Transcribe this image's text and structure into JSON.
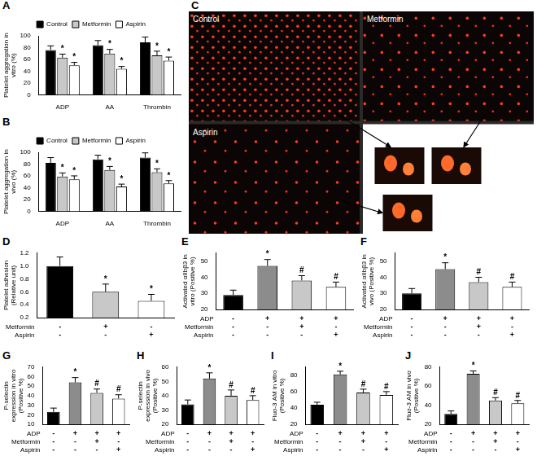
{
  "chart_data": [
    {
      "panel": "A",
      "type": "bar",
      "y_label": "Platelet aggregation in vitro (%)",
      "categories": [
        "ADP",
        "AA",
        "Thrombin"
      ],
      "series": [
        {
          "name": "Control",
          "color": "#000000",
          "values": [
            76,
            84,
            89
          ],
          "errors": [
            7,
            8,
            9
          ]
        },
        {
          "name": "Metformin",
          "color": "#c8c8c8",
          "values": [
            63,
            70,
            67
          ],
          "errors": [
            6,
            7,
            7
          ],
          "significance": [
            "*",
            "*",
            "*"
          ]
        },
        {
          "name": "Aspirin",
          "color": "#ffffff",
          "values": [
            50,
            44,
            58
          ],
          "errors": [
            5,
            4,
            6
          ],
          "significance": [
            "*",
            "*",
            "*"
          ]
        }
      ],
      "ylim": [
        0,
        100
      ],
      "yticks": [
        0,
        20,
        40,
        60,
        80,
        100
      ],
      "grid": false,
      "legend": "top"
    },
    {
      "panel": "B",
      "type": "bar",
      "y_label": "Platelet aggregation in vivo (%)",
      "categories": [
        "ADP",
        "AA",
        "Thrombin"
      ],
      "series": [
        {
          "name": "Control",
          "color": "#000000",
          "values": [
            82,
            88,
            91
          ],
          "errors": [
            9,
            7,
            8
          ]
        },
        {
          "name": "Metformin",
          "color": "#c8c8c8",
          "values": [
            59,
            70,
            66
          ],
          "errors": [
            6,
            6,
            6
          ],
          "significance": [
            "*",
            "*",
            "*"
          ]
        },
        {
          "name": "Aspirin",
          "color": "#ffffff",
          "values": [
            54,
            42,
            47
          ],
          "errors": [
            6,
            4,
            5
          ],
          "significance": [
            "*",
            "*",
            "*"
          ]
        }
      ],
      "ylim": [
        0,
        100
      ],
      "yticks": [
        0,
        20,
        40,
        60,
        80,
        100
      ],
      "grid": false,
      "legend": "top"
    },
    {
      "panel": "D",
      "type": "bar",
      "y_label": "Platelet adhesion (Relative unit)",
      "x_rows": [
        {
          "label": "Metformin",
          "marks": [
            "-",
            "+",
            "-"
          ]
        },
        {
          "label": "Aspirin",
          "marks": [
            "-",
            "-",
            "+"
          ]
        }
      ],
      "values": [
        1.0,
        0.6,
        0.46
      ],
      "errors": [
        0.14,
        0.12,
        0.1
      ],
      "significance": [
        null,
        "*",
        "*"
      ],
      "colors": [
        "#000000",
        "#c8c8c8",
        "#ffffff"
      ],
      "ylim": [
        0.2,
        1.2
      ],
      "yticks": [
        0.2,
        0.4,
        0.6,
        0.8,
        {
          "value": 1,
          "label": "1.0"
        },
        1.2
      ],
      "grid": false
    },
    {
      "panel": "E",
      "type": "bar",
      "y_label": "Activated αIIbβ3 in vitro (Positive %)",
      "x_rows": [
        {
          "label": "ADP",
          "marks": [
            "-",
            "+",
            "+",
            "+"
          ]
        },
        {
          "label": "Metformin",
          "marks": [
            "-",
            "-",
            "+",
            "-"
          ]
        },
        {
          "label": "Aspirin",
          "marks": [
            "-",
            "-",
            "-",
            "+"
          ]
        }
      ],
      "values": [
        29,
        47,
        38,
        34
      ],
      "errors": [
        3,
        4,
        3,
        3
      ],
      "significance": [
        null,
        "*",
        "#",
        "#"
      ],
      "colors": [
        "#000000",
        "#8c8c8c",
        "#c8c8c8",
        "#ffffff"
      ],
      "ylim": [
        20,
        55
      ],
      "yticks": [
        20,
        30,
        40,
        50
      ],
      "grid": false
    },
    {
      "panel": "F",
      "type": "bar",
      "y_label": "Activated αIIbβ3 in vivo (Positive %)",
      "x_rows": [
        {
          "label": "ADP",
          "marks": [
            "-",
            "+",
            "+",
            "+"
          ]
        },
        {
          "label": "Metformin",
          "marks": [
            "-",
            "-",
            "+",
            "-"
          ]
        },
        {
          "label": "Aspirin",
          "marks": [
            "-",
            "-",
            "-",
            "+"
          ]
        }
      ],
      "values": [
        30,
        45,
        37,
        34
      ],
      "errors": [
        3,
        4,
        3,
        3
      ],
      "significance": [
        null,
        "*",
        "#",
        "#"
      ],
      "colors": [
        "#000000",
        "#8c8c8c",
        "#c8c8c8",
        "#ffffff"
      ],
      "ylim": [
        20,
        55
      ],
      "yticks": [
        20,
        30,
        40,
        50
      ],
      "grid": false
    },
    {
      "panel": "G",
      "type": "bar",
      "y_label": "P-selectin expression in vitro (Positive %)",
      "x_rows": [
        {
          "label": "ADP",
          "marks": [
            "-",
            "+",
            "+",
            "+"
          ]
        },
        {
          "label": "Metformin",
          "marks": [
            "-",
            "-",
            "+",
            "-"
          ]
        },
        {
          "label": "Aspirin",
          "marks": [
            "-",
            "-",
            "-",
            "+"
          ]
        }
      ],
      "values": [
        23,
        54,
        43,
        37
      ],
      "errors": [
        4,
        5,
        4,
        4
      ],
      "significance": [
        null,
        "*",
        "#",
        "#"
      ],
      "colors": [
        "#000000",
        "#8c8c8c",
        "#c8c8c8",
        "#ffffff"
      ],
      "ylim": [
        10,
        70
      ],
      "yticks": [
        10,
        20,
        30,
        40,
        50,
        60,
        70
      ],
      "grid": false
    },
    {
      "panel": "H",
      "type": "bar",
      "y_label": "P-selectin expression in vivo (Positive %)",
      "x_rows": [
        {
          "label": "ADP",
          "marks": [
            "-",
            "+",
            "+",
            "+"
          ]
        },
        {
          "label": "Metformin",
          "marks": [
            "-",
            "-",
            "+",
            "-"
          ]
        },
        {
          "label": "Aspirin",
          "marks": [
            "-",
            "-",
            "-",
            "+"
          ]
        }
      ],
      "values": [
        34,
        52,
        40,
        37
      ],
      "errors": [
        3,
        4,
        4,
        3
      ],
      "significance": [
        null,
        "*",
        "#",
        "#"
      ],
      "colors": [
        "#000000",
        "#8c8c8c",
        "#c8c8c8",
        "#ffffff"
      ],
      "ylim": [
        20,
        60
      ],
      "yticks": [
        20,
        30,
        40,
        50,
        60
      ],
      "grid": false
    },
    {
      "panel": "I",
      "type": "bar",
      "y_label": "Fluo-3 AM in vitro (Positive %)",
      "x_rows": [
        {
          "label": "ADP",
          "marks": [
            "-",
            "+",
            "+",
            "+"
          ]
        },
        {
          "label": "Metformin",
          "marks": [
            "-",
            "-",
            "+",
            "-"
          ]
        },
        {
          "label": "Aspirin",
          "marks": [
            "-",
            "-",
            "-",
            "+"
          ]
        }
      ],
      "values": [
        44,
        81,
        59,
        56
      ],
      "errors": [
        3,
        4,
        4,
        4
      ],
      "significance": [
        null,
        "*",
        "#",
        "#"
      ],
      "colors": [
        "#000000",
        "#8c8c8c",
        "#c8c8c8",
        "#ffffff"
      ],
      "ylim": [
        20,
        90
      ],
      "yticks": [
        20,
        40,
        60,
        80
      ],
      "grid": false
    },
    {
      "panel": "J",
      "type": "bar",
      "y_label": "Fluo-3 AM in vivo (Positive %)",
      "x_rows": [
        {
          "label": "ADP",
          "marks": [
            "-",
            "+",
            "+",
            "+"
          ]
        },
        {
          "label": "Metformin",
          "marks": [
            "-",
            "-",
            "+",
            "-"
          ]
        },
        {
          "label": "Aspirin",
          "marks": [
            "-",
            "-",
            "-",
            "+"
          ]
        }
      ],
      "values": [
        31,
        73,
        45,
        42
      ],
      "errors": [
        3,
        3,
        3,
        3
      ],
      "significance": [
        null,
        "*",
        "#",
        "#"
      ],
      "colors": [
        "#000000",
        "#8c8c8c",
        "#c8c8c8",
        "#ffffff"
      ],
      "ylim": [
        20,
        80
      ],
      "yticks": [
        20,
        40,
        60,
        80
      ],
      "grid": false
    }
  ],
  "image_panel": {
    "panel": "C",
    "labels": [
      "Control",
      "Metformin",
      "Aspirin"
    ]
  }
}
